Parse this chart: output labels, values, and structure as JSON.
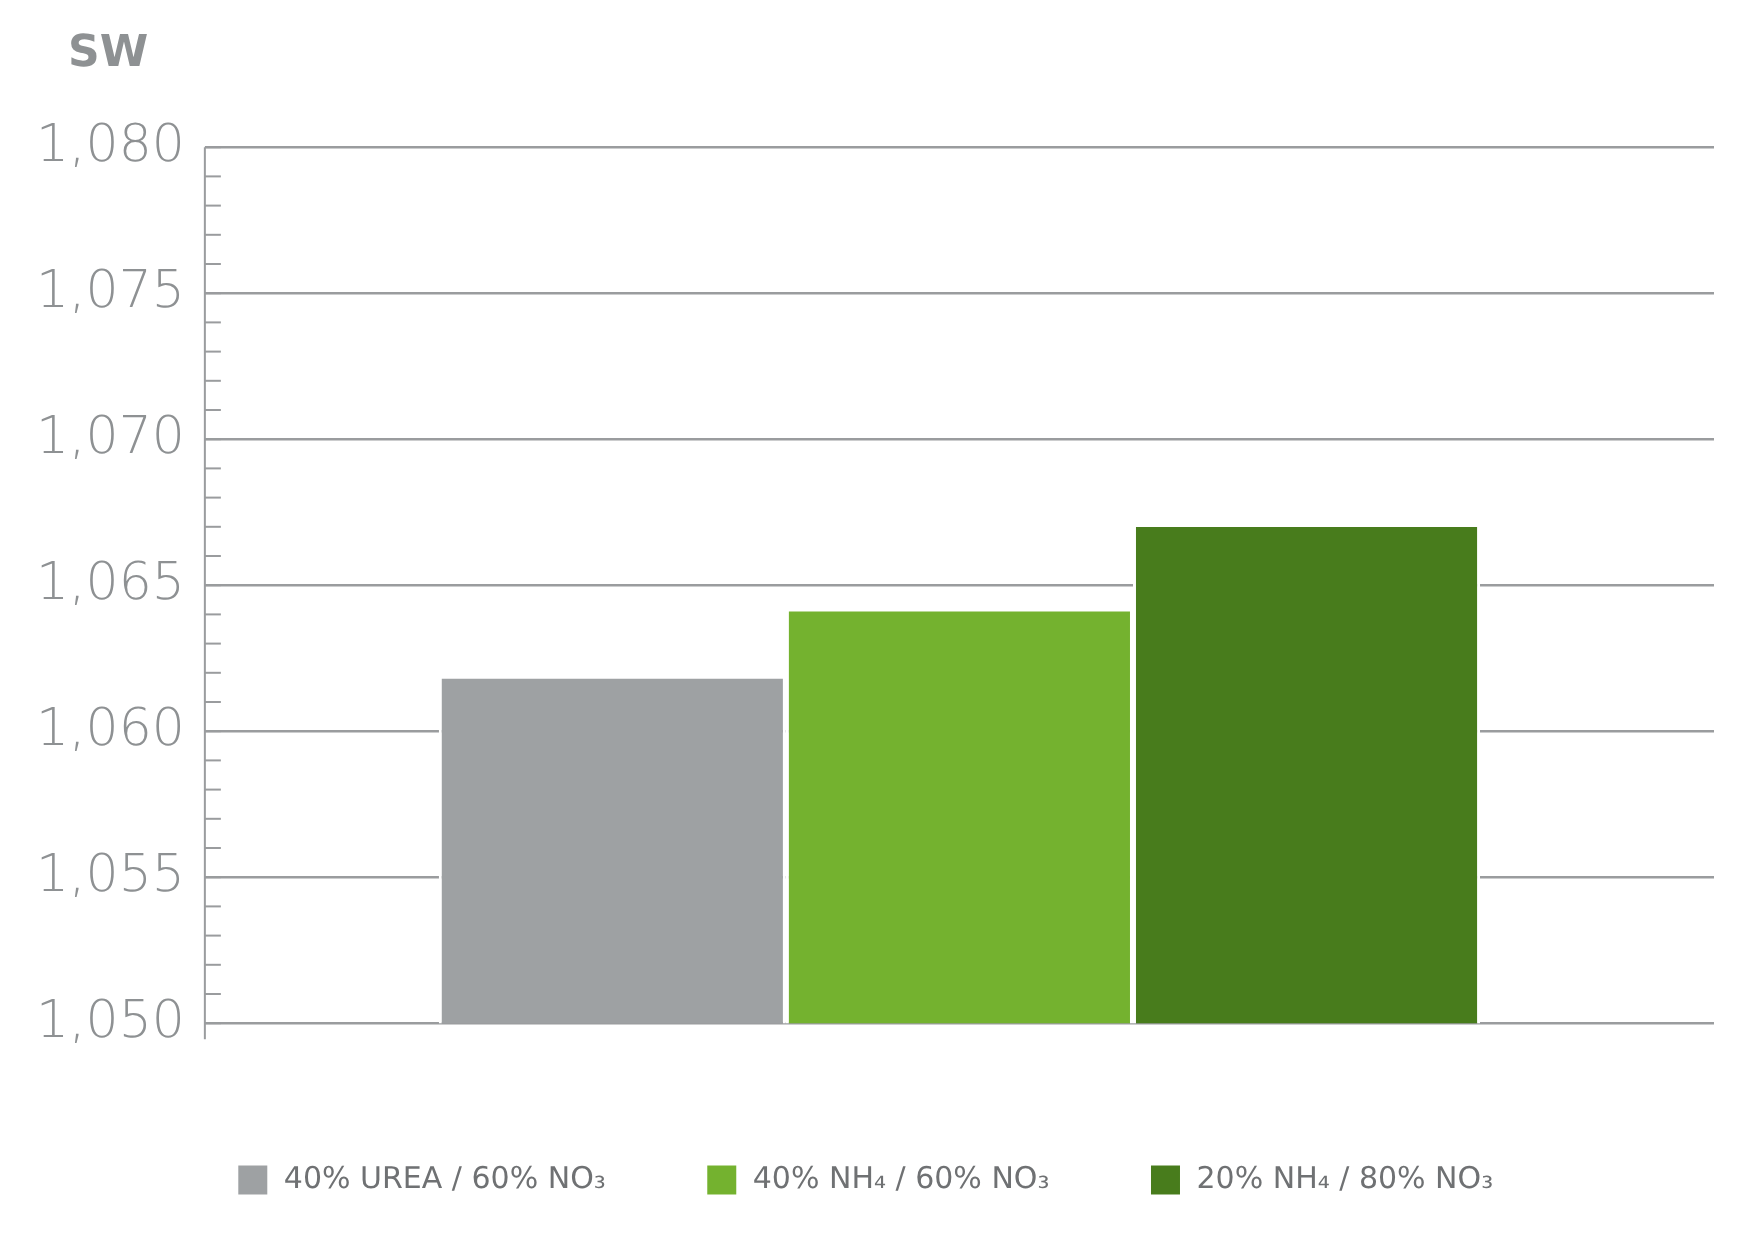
{
  "chart_data": {
    "type": "bar",
    "ylabel": "SW",
    "categories": [
      null
    ],
    "series": [
      {
        "name": "40% UREA / 60% NO₃",
        "color": "#9ea1a3",
        "values": [
          1061.9
        ]
      },
      {
        "name": "40% NH₄ / 60% NO₃",
        "color": "#74b22f",
        "values": [
          1064.2
        ]
      },
      {
        "name": "20% NH₄ / 80% NO₃",
        "color": "#487c1c",
        "values": [
          1067.1
        ]
      }
    ],
    "ylim": [
      1050,
      1080
    ],
    "yticks": [
      {
        "value": 1050,
        "label": "1,050"
      },
      {
        "value": 1051,
        "label": null
      },
      {
        "value": 1052,
        "label": null
      },
      {
        "value": 1053,
        "label": null
      },
      {
        "value": 1054,
        "label": null
      },
      {
        "value": 1055,
        "label": "1,055"
      },
      {
        "value": 1056,
        "label": null
      },
      {
        "value": 1057,
        "label": null
      },
      {
        "value": 1058,
        "label": null
      },
      {
        "value": 1059,
        "label": null
      },
      {
        "value": 1060,
        "label": "1,060"
      },
      {
        "value": 1061,
        "label": null
      },
      {
        "value": 1062,
        "label": null
      },
      {
        "value": 1063,
        "label": null
      },
      {
        "value": 1064,
        "label": null
      },
      {
        "value": 1065,
        "label": "1,065"
      },
      {
        "value": 1066,
        "label": null
      },
      {
        "value": 1067,
        "label": null
      },
      {
        "value": 1068,
        "label": null
      },
      {
        "value": 1069,
        "label": null
      },
      {
        "value": 1070,
        "label": "1,070"
      },
      {
        "value": 1071,
        "label": null
      },
      {
        "value": 1072,
        "label": null
      },
      {
        "value": 1073,
        "label": null
      },
      {
        "value": 1074,
        "label": null
      },
      {
        "value": 1075,
        "label": "1,075"
      },
      {
        "value": 1076,
        "label": null
      },
      {
        "value": 1077,
        "label": null
      },
      {
        "value": 1078,
        "label": null
      },
      {
        "value": 1079,
        "label": null
      },
      {
        "value": 1080,
        "label": "1,080"
      }
    ],
    "grid": "y",
    "legend": "bottom"
  }
}
